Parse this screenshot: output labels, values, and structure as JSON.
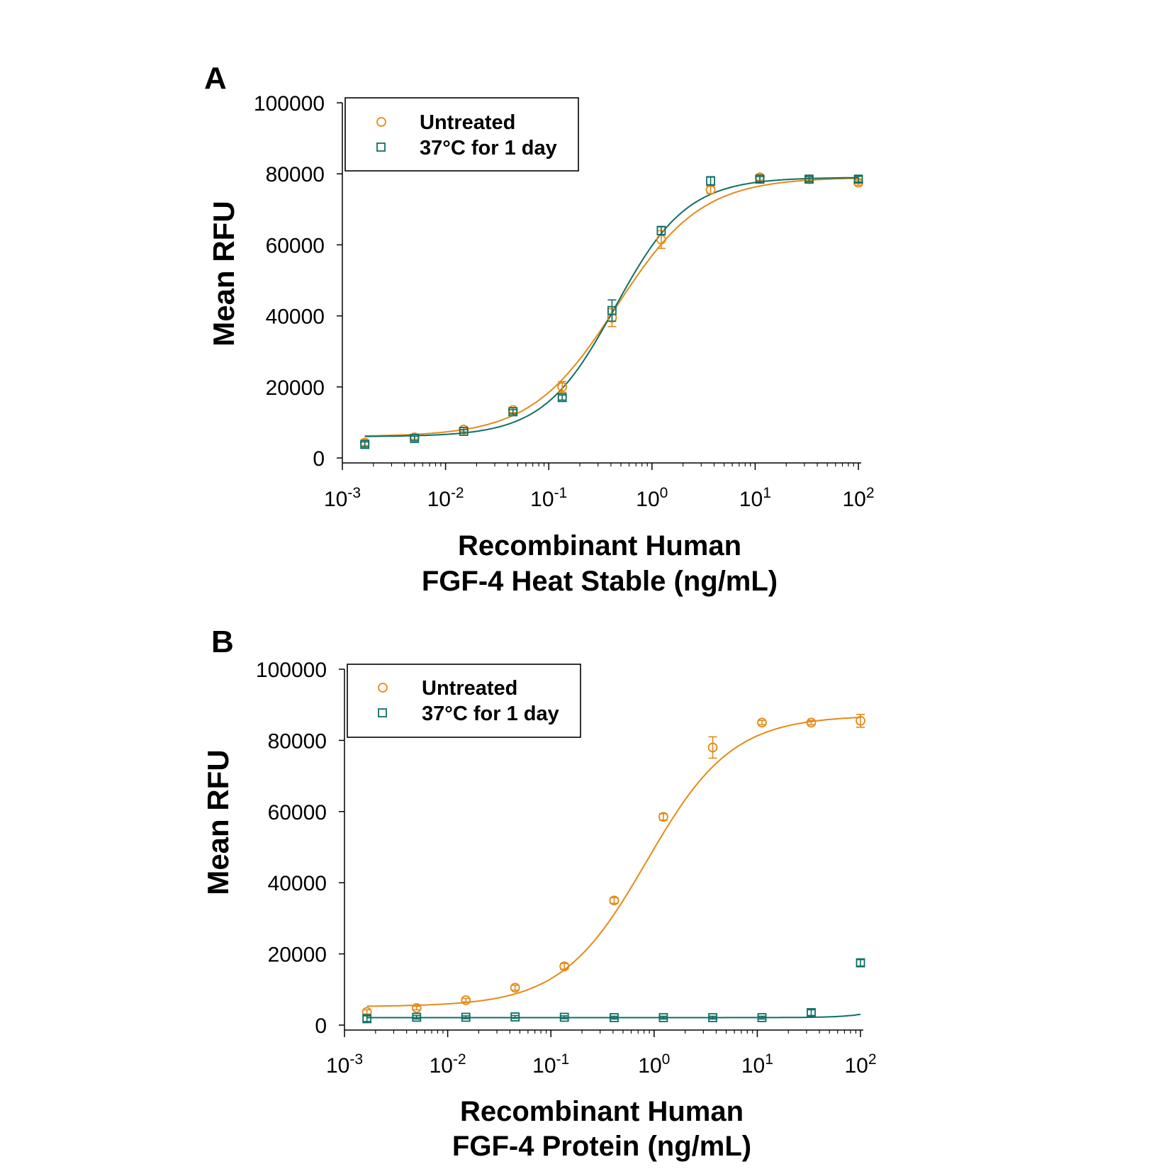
{
  "colors": {
    "untreated": "#E58A16",
    "treated": "#0E6F66",
    "axis": "#000000"
  },
  "chart_data": [
    {
      "type": "scatter",
      "panel": "A",
      "ylabel": "Mean RFU",
      "xlabel_lines": [
        "Recombinant Human",
        "FGF-4 Heat Stable (ng/mL)"
      ],
      "x_scale": "log",
      "xlim": [
        0.001,
        100
      ],
      "ylim": [
        0,
        100000
      ],
      "y_ticks": [
        "0",
        "20000",
        "40000",
        "60000",
        "80000",
        "100000"
      ],
      "x_ticks": [
        {
          "value": 0.001,
          "base": "10",
          "exp": "-3"
        },
        {
          "value": 0.01,
          "base": "10",
          "exp": "-2"
        },
        {
          "value": 0.1,
          "base": "10",
          "exp": "-1"
        },
        {
          "value": 1,
          "base": "10",
          "exp": "0"
        },
        {
          "value": 10,
          "base": "10",
          "exp": "1"
        },
        {
          "value": 100,
          "base": "10",
          "exp": "2"
        }
      ],
      "legend": {
        "position": "top-left",
        "entries": [
          "Untreated",
          "37°C for 1 day"
        ]
      },
      "x": [
        0.00165,
        0.005,
        0.015,
        0.045,
        0.135,
        0.41,
        1.23,
        3.7,
        11.1,
        33.3,
        100
      ],
      "series": [
        {
          "name": "Untreated",
          "marker": "circle",
          "color_key": "untreated",
          "values": [
            4300,
            5800,
            8000,
            13500,
            20000,
            39500,
            61500,
            75500,
            79000,
            78500,
            77500
          ],
          "errors": [
            800,
            500,
            600,
            700,
            1500,
            2500,
            2500,
            1000,
            800,
            600,
            700
          ],
          "fit": {
            "bottom": 6000,
            "top": 79000,
            "ec50": 0.45,
            "hill": 1.05
          }
        },
        {
          "name": "37°C for 1 day",
          "marker": "square",
          "color_key": "treated",
          "values": [
            3800,
            5500,
            7500,
            13000,
            17000,
            41500,
            64000,
            78000,
            78500,
            78500,
            78500
          ],
          "errors": [
            700,
            600,
            500,
            600,
            700,
            3000,
            1200,
            1200,
            700,
            700,
            800
          ],
          "fit": {
            "bottom": 6000,
            "top": 79000,
            "ec50": 0.44,
            "hill": 1.25
          }
        }
      ]
    },
    {
      "type": "scatter",
      "panel": "B",
      "ylabel": "Mean RFU",
      "xlabel_lines": [
        "Recombinant Human",
        "FGF-4 Protein (ng/mL)"
      ],
      "x_scale": "log",
      "xlim": [
        0.001,
        100
      ],
      "ylim": [
        0,
        100000
      ],
      "y_ticks": [
        "0",
        "20000",
        "40000",
        "60000",
        "80000",
        "100000"
      ],
      "x_ticks": [
        {
          "value": 0.001,
          "base": "10",
          "exp": "-3"
        },
        {
          "value": 0.01,
          "base": "10",
          "exp": "-2"
        },
        {
          "value": 0.1,
          "base": "10",
          "exp": "-1"
        },
        {
          "value": 1,
          "base": "10",
          "exp": "0"
        },
        {
          "value": 10,
          "base": "10",
          "exp": "1"
        },
        {
          "value": 100,
          "base": "10",
          "exp": "2"
        }
      ],
      "legend": {
        "position": "top-left",
        "entries": [
          "Untreated",
          "37°C for 1 day"
        ]
      },
      "x": [
        0.00165,
        0.005,
        0.015,
        0.045,
        0.135,
        0.41,
        1.23,
        3.7,
        11.1,
        33.3,
        100
      ],
      "series": [
        {
          "name": "Untreated",
          "marker": "circle",
          "color_key": "untreated",
          "values": [
            3700,
            4800,
            7000,
            10500,
            16500,
            35000,
            58500,
            78000,
            85000,
            85000,
            85500
          ],
          "errors": [
            600,
            500,
            500,
            700,
            800,
            800,
            900,
            3000,
            600,
            600,
            1800
          ],
          "fit": {
            "bottom": 5200,
            "top": 87000,
            "ec50": 0.85,
            "hill": 1.05
          }
        },
        {
          "name": "37°C for 1 day",
          "marker": "square",
          "color_key": "treated",
          "values": [
            1800,
            2200,
            2200,
            2300,
            2200,
            2100,
            2100,
            2100,
            2100,
            3500,
            17500
          ],
          "errors": [
            800,
            500,
            400,
            400,
            400,
            400,
            400,
            400,
            400,
            800,
            900
          ],
          "fit": {
            "bottom": 2100,
            "top": 120000,
            "ec50": 1000,
            "hill": 2.1
          }
        }
      ]
    }
  ]
}
